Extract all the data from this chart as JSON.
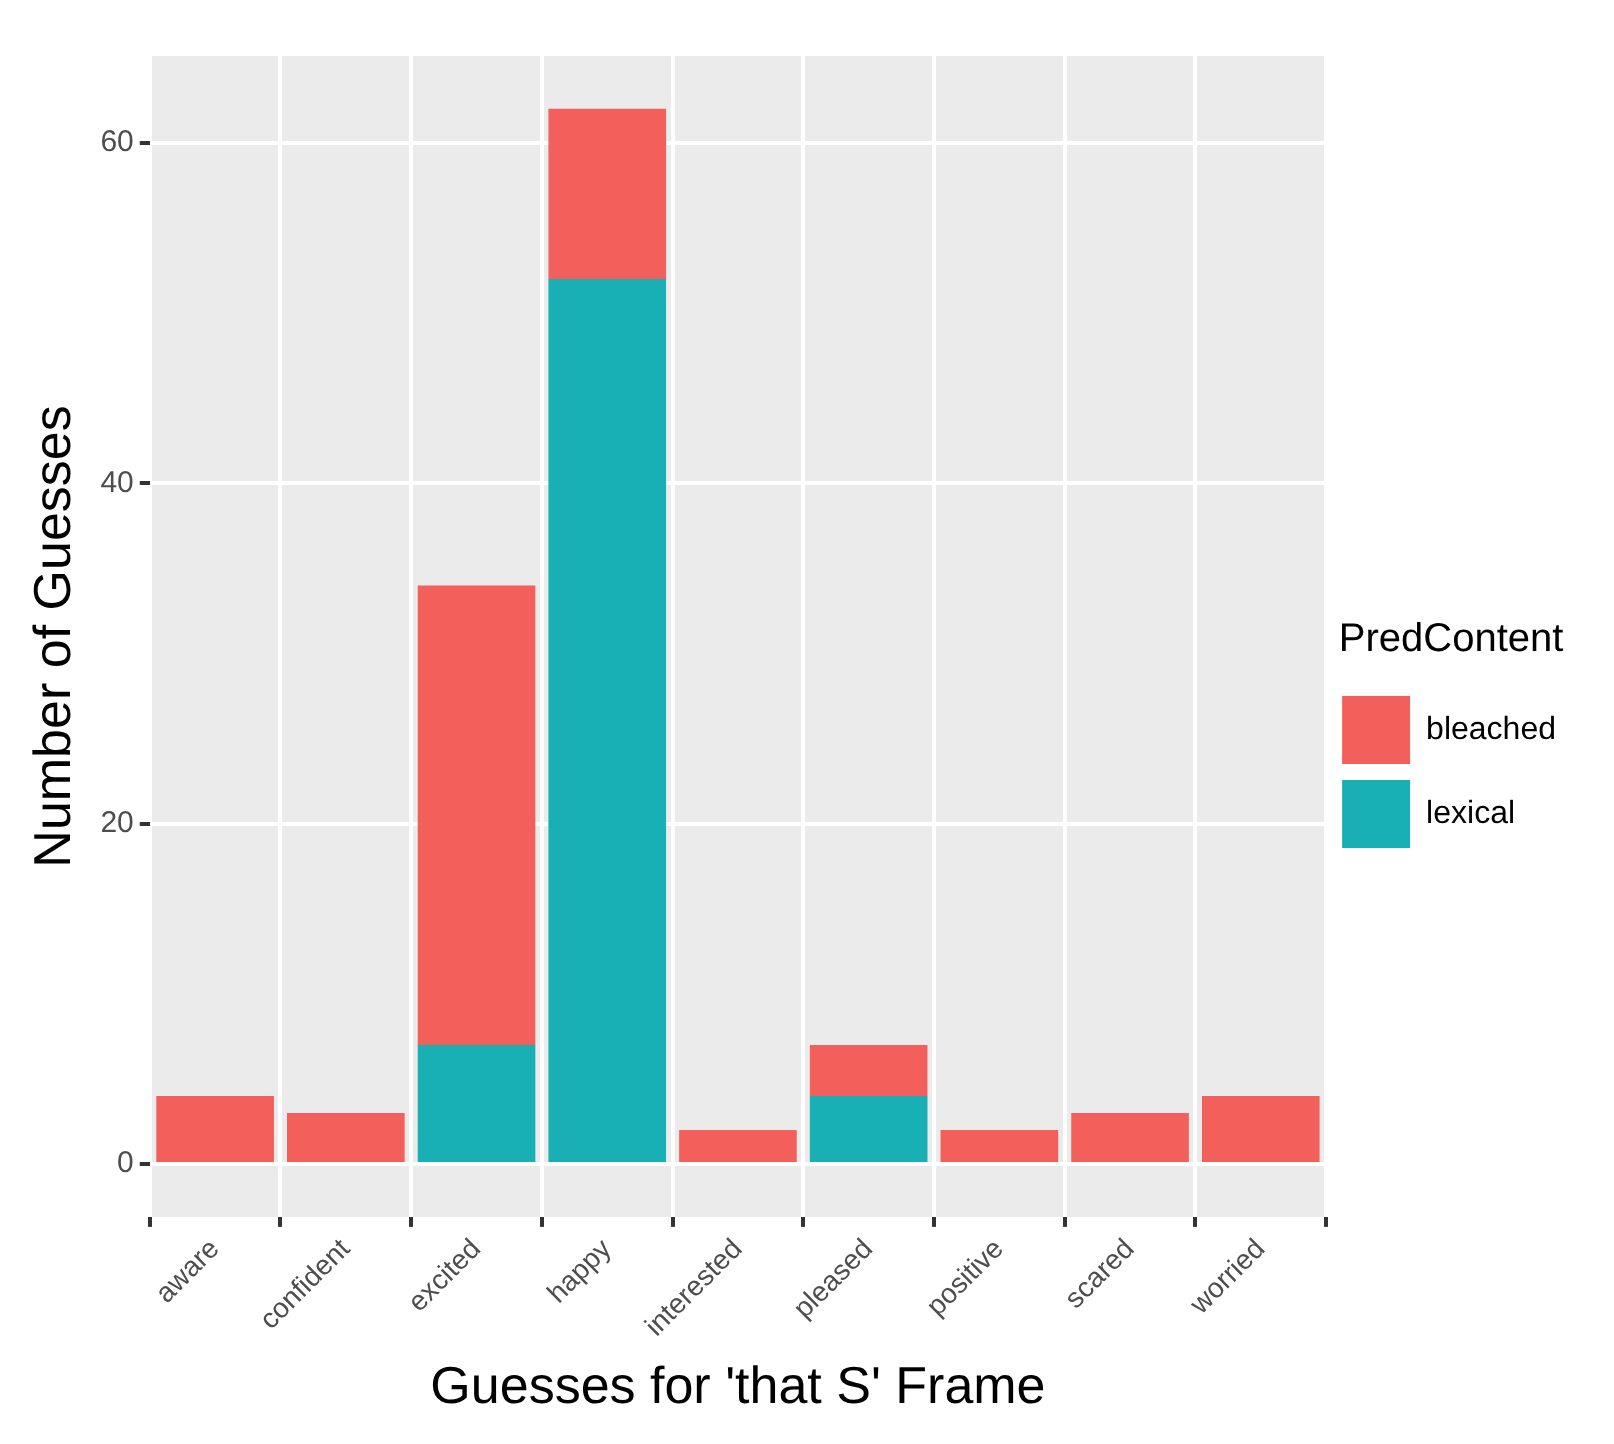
{
  "chart_data": {
    "type": "bar",
    "xlabel": "Guesses for 'that S' Frame",
    "ylabel": "Number of Guesses",
    "legend_title": "PredContent",
    "categories": [
      "aware",
      "confident",
      "excited",
      "happy",
      "interested",
      "pleased",
      "positive",
      "scared",
      "worried"
    ],
    "stacked": true,
    "series": [
      {
        "name": "lexical",
        "color": "#18b0b5",
        "values": [
          0,
          0,
          7,
          52,
          0,
          4,
          0,
          0,
          0
        ]
      },
      {
        "name": "bleached",
        "color": "#f35f5a",
        "values": [
          4,
          3,
          27,
          10,
          2,
          3,
          2,
          3,
          4
        ]
      }
    ],
    "ylim": [
      -3.1,
      65.1
    ],
    "yticks": [
      0,
      20,
      40,
      60
    ],
    "grid": true,
    "legend": "right"
  }
}
